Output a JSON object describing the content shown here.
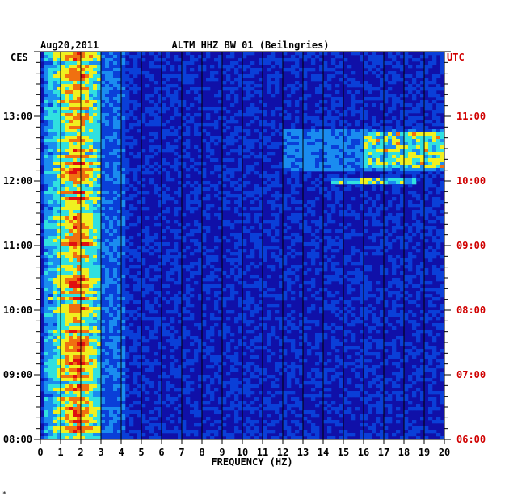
{
  "chart_data": {
    "type": "heatmap",
    "date_label": "Aug20,2011",
    "title": "ALTM HHZ BW 01 (Beilngries)",
    "left_zone": "CES",
    "right_zone": "UTC",
    "xlabel": "FREQUENCY (HZ)",
    "xlim": [
      0,
      20
    ],
    "x_ticks": [
      "0",
      "1",
      "2",
      "3",
      "4",
      "5",
      "6",
      "7",
      "8",
      "9",
      "10",
      "11",
      "12",
      "13",
      "14",
      "15",
      "16",
      "17",
      "18",
      "19",
      "20"
    ],
    "ylim_ces_hours": [
      8,
      14
    ],
    "y_ticks_ces": [
      "13:00",
      "12:00",
      "11:00",
      "10:00",
      "09:00",
      "08:00"
    ],
    "y_ticks_utc": [
      "11:00",
      "10:00",
      "09:00",
      "08:00",
      "07:00",
      "06:00"
    ],
    "colorscale": [
      "#1010a8",
      "#0a3fd8",
      "#1a8cf0",
      "#30e0e0",
      "#f0f020",
      "#f07010",
      "#e01010"
    ],
    "features": [
      {
        "name": "low-frequency band",
        "f_from": 0.2,
        "f_to": 3.0,
        "intensity": 0.75
      },
      {
        "name": "high-frequency burst",
        "f_from": 16.0,
        "f_to": 20.0,
        "ces_from": 12.2,
        "ces_to": 12.75,
        "intensity": 0.7
      },
      {
        "name": "line at 12:00",
        "f_from": 14.5,
        "f_to": 18.5,
        "ces_at": 11.98,
        "intensity": 0.6
      }
    ]
  },
  "footer_mark": "*"
}
